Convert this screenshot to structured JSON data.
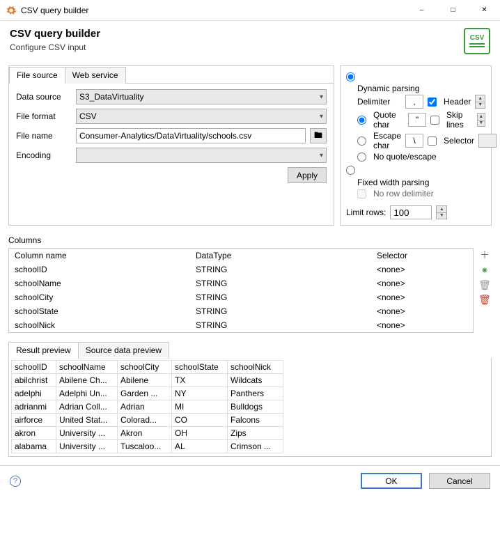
{
  "window": {
    "title": "CSV query builder"
  },
  "header": {
    "title": "CSV query builder",
    "subtitle": "Configure CSV input",
    "icon_label": "CSV"
  },
  "tabs": {
    "file_source": "File source",
    "web_service": "Web service"
  },
  "form": {
    "data_source_label": "Data source",
    "data_source_value": "S3_DataVirtuality",
    "file_format_label": "File format",
    "file_format_value": "CSV",
    "file_name_label": "File name",
    "file_name_value": "Consumer-Analytics/DataVirtuality/schools.csv",
    "encoding_label": "Encoding",
    "encoding_value": "",
    "apply": "Apply"
  },
  "parsing": {
    "dynamic_label": "Dynamic parsing",
    "delimiter_label": "Delimiter",
    "delimiter_value": ",",
    "header_label": "Header",
    "header_checked": true,
    "quote_label": "Quote char",
    "quote_value": "\"",
    "skip_label": "Skip lines",
    "escape_label": "Escape char",
    "escape_value": "\\",
    "selector_label": "Selector",
    "noquote_label": "No quote/escape",
    "fixed_label": "Fixed width parsing",
    "norow_label": "No row delimiter",
    "limit_label": "Limit rows:",
    "limit_value": "100"
  },
  "columns": {
    "section": "Columns",
    "headers": {
      "name": "Column name",
      "type": "DataType",
      "selector": "Selector"
    },
    "rows": [
      {
        "name": "schoolID",
        "type": "STRING",
        "selector": "<none>"
      },
      {
        "name": "schoolName",
        "type": "STRING",
        "selector": "<none>"
      },
      {
        "name": "schoolCity",
        "type": "STRING",
        "selector": "<none>"
      },
      {
        "name": "schoolState",
        "type": "STRING",
        "selector": "<none>"
      },
      {
        "name": "schoolNick",
        "type": "STRING",
        "selector": "<none>"
      }
    ]
  },
  "preview": {
    "tab_result": "Result preview",
    "tab_source": "Source data preview",
    "headers": [
      "schoolID",
      "schoolName",
      "schoolCity",
      "schoolState",
      "schoolNick"
    ],
    "rows": [
      [
        "abilchrist",
        "Abilene Ch...",
        "Abilene",
        "TX",
        "Wildcats"
      ],
      [
        "adelphi",
        "Adelphi Un...",
        "Garden ...",
        "NY",
        "Panthers"
      ],
      [
        "adrianmi",
        "Adrian Coll...",
        "Adrian",
        "MI",
        "Bulldogs"
      ],
      [
        "airforce",
        "United Stat...",
        "Colorad...",
        "CO",
        "Falcons"
      ],
      [
        "akron",
        "University ...",
        "Akron",
        "OH",
        "Zips"
      ],
      [
        "alabama",
        "University ...",
        "Tuscaloo...",
        "AL",
        "Crimson ..."
      ]
    ]
  },
  "footer": {
    "ok": "OK",
    "cancel": "Cancel"
  },
  "colors": {
    "accent": "#3a78c9",
    "green": "#3a9a3a"
  }
}
